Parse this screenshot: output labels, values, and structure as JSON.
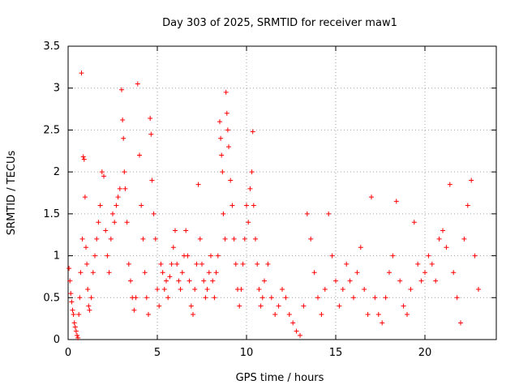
{
  "chart_data": {
    "type": "scatter",
    "title": "Day 303 of 2025, SRMTID for receiver maw1",
    "xlabel": "GPS time / hours",
    "ylabel": "SRMTID / TECUs",
    "xlim": [
      0,
      24
    ],
    "ylim": [
      0,
      3.5
    ],
    "xticks": [
      0,
      5,
      10,
      15,
      20
    ],
    "yticks": [
      0,
      0.5,
      1,
      1.5,
      2,
      2.5,
      3,
      3.5
    ],
    "xtick_labels": [
      "0",
      "5",
      "10",
      "15",
      "20"
    ],
    "ytick_labels": [
      "0",
      "0.5",
      "1",
      "1.5",
      "2",
      "2.5",
      "3",
      "3.5"
    ],
    "grid": true,
    "marker": "+",
    "color": "#ff0000",
    "series": [
      {
        "name": "SRMTID",
        "points": [
          [
            0.05,
            0.85
          ],
          [
            0.1,
            0.7
          ],
          [
            0.15,
            0.55
          ],
          [
            0.2,
            0.45
          ],
          [
            0.25,
            0.35
          ],
          [
            0.3,
            0.3
          ],
          [
            0.35,
            0.2
          ],
          [
            0.4,
            0.15
          ],
          [
            0.45,
            0.1
          ],
          [
            0.5,
            0.05
          ],
          [
            0.55,
            0.02
          ],
          [
            0.6,
            0.3
          ],
          [
            0.65,
            0.5
          ],
          [
            0.7,
            0.8
          ],
          [
            0.75,
            3.18
          ],
          [
            0.8,
            1.2
          ],
          [
            0.85,
            2.18
          ],
          [
            0.9,
            2.15
          ],
          [
            0.95,
            1.7
          ],
          [
            1.0,
            1.1
          ],
          [
            1.05,
            0.9
          ],
          [
            1.1,
            0.6
          ],
          [
            1.15,
            0.4
          ],
          [
            1.2,
            0.35
          ],
          [
            1.3,
            0.5
          ],
          [
            1.4,
            0.8
          ],
          [
            1.5,
            1.0
          ],
          [
            1.6,
            1.2
          ],
          [
            1.7,
            1.4
          ],
          [
            1.8,
            1.6
          ],
          [
            1.9,
            2.0
          ],
          [
            2.0,
            1.95
          ],
          [
            2.1,
            1.3
          ],
          [
            2.2,
            1.0
          ],
          [
            2.3,
            0.8
          ],
          [
            2.4,
            1.2
          ],
          [
            2.5,
            1.5
          ],
          [
            2.6,
            1.4
          ],
          [
            2.7,
            1.6
          ],
          [
            2.8,
            1.7
          ],
          [
            2.9,
            1.8
          ],
          [
            3.0,
            2.98
          ],
          [
            3.05,
            2.62
          ],
          [
            3.1,
            2.4
          ],
          [
            3.15,
            2.0
          ],
          [
            3.2,
            1.8
          ],
          [
            3.3,
            1.4
          ],
          [
            3.4,
            0.9
          ],
          [
            3.5,
            0.7
          ],
          [
            3.6,
            0.5
          ],
          [
            3.7,
            0.35
          ],
          [
            3.8,
            0.5
          ],
          [
            3.9,
            3.05
          ],
          [
            4.0,
            2.2
          ],
          [
            4.1,
            1.6
          ],
          [
            4.2,
            1.2
          ],
          [
            4.3,
            0.8
          ],
          [
            4.4,
            0.5
          ],
          [
            4.5,
            0.3
          ],
          [
            4.6,
            2.64
          ],
          [
            4.65,
            2.45
          ],
          [
            4.7,
            1.9
          ],
          [
            4.8,
            1.5
          ],
          [
            4.9,
            1.2
          ],
          [
            5.0,
            0.6
          ],
          [
            5.1,
            0.4
          ],
          [
            5.2,
            0.9
          ],
          [
            5.3,
            0.8
          ],
          [
            5.4,
            0.6
          ],
          [
            5.5,
            0.7
          ],
          [
            5.6,
            0.5
          ],
          [
            5.7,
            0.75
          ],
          [
            5.8,
            0.9
          ],
          [
            5.9,
            1.1
          ],
          [
            6.0,
            1.3
          ],
          [
            6.1,
            0.9
          ],
          [
            6.2,
            0.7
          ],
          [
            6.3,
            0.6
          ],
          [
            6.4,
            0.8
          ],
          [
            6.5,
            1.0
          ],
          [
            6.6,
            1.3
          ],
          [
            6.7,
            1.0
          ],
          [
            6.8,
            0.7
          ],
          [
            6.9,
            0.4
          ],
          [
            7.0,
            0.3
          ],
          [
            7.1,
            0.6
          ],
          [
            7.2,
            0.9
          ],
          [
            7.3,
            1.85
          ],
          [
            7.4,
            1.2
          ],
          [
            7.5,
            0.9
          ],
          [
            7.6,
            0.7
          ],
          [
            7.7,
            0.5
          ],
          [
            7.8,
            0.6
          ],
          [
            7.9,
            0.8
          ],
          [
            8.0,
            1.0
          ],
          [
            8.1,
            0.7
          ],
          [
            8.2,
            0.5
          ],
          [
            8.3,
            0.8
          ],
          [
            8.4,
            1.0
          ],
          [
            8.5,
            2.6
          ],
          [
            8.55,
            2.4
          ],
          [
            8.6,
            2.2
          ],
          [
            8.65,
            2.0
          ],
          [
            8.7,
            1.5
          ],
          [
            8.8,
            1.2
          ],
          [
            8.85,
            2.95
          ],
          [
            8.9,
            2.7
          ],
          [
            8.95,
            2.5
          ],
          [
            9.0,
            2.3
          ],
          [
            9.1,
            1.9
          ],
          [
            9.2,
            1.6
          ],
          [
            9.3,
            1.2
          ],
          [
            9.4,
            0.9
          ],
          [
            9.5,
            0.6
          ],
          [
            9.6,
            0.4
          ],
          [
            9.7,
            0.6
          ],
          [
            9.8,
            0.9
          ],
          [
            9.9,
            1.2
          ],
          [
            10.0,
            1.6
          ],
          [
            10.1,
            1.4
          ],
          [
            10.2,
            1.8
          ],
          [
            10.3,
            2.0
          ],
          [
            10.35,
            2.48
          ],
          [
            10.4,
            1.6
          ],
          [
            10.5,
            1.2
          ],
          [
            10.6,
            0.9
          ],
          [
            10.7,
            0.6
          ],
          [
            10.8,
            0.4
          ],
          [
            10.9,
            0.5
          ],
          [
            11.0,
            0.7
          ],
          [
            11.2,
            0.9
          ],
          [
            11.4,
            0.5
          ],
          [
            11.6,
            0.3
          ],
          [
            11.8,
            0.4
          ],
          [
            12.0,
            0.6
          ],
          [
            12.2,
            0.5
          ],
          [
            12.4,
            0.3
          ],
          [
            12.6,
            0.2
          ],
          [
            12.8,
            0.1
          ],
          [
            13.0,
            0.05
          ],
          [
            13.2,
            0.4
          ],
          [
            13.4,
            1.5
          ],
          [
            13.6,
            1.2
          ],
          [
            13.8,
            0.8
          ],
          [
            14.0,
            0.5
          ],
          [
            14.2,
            0.3
          ],
          [
            14.4,
            0.6
          ],
          [
            14.6,
            1.5
          ],
          [
            14.8,
            1.0
          ],
          [
            15.0,
            0.7
          ],
          [
            15.2,
            0.4
          ],
          [
            15.4,
            0.6
          ],
          [
            15.6,
            0.9
          ],
          [
            15.8,
            0.7
          ],
          [
            16.0,
            0.5
          ],
          [
            16.2,
            0.8
          ],
          [
            16.4,
            1.1
          ],
          [
            16.6,
            0.6
          ],
          [
            16.8,
            0.3
          ],
          [
            17.0,
            1.7
          ],
          [
            17.2,
            0.5
          ],
          [
            17.4,
            0.3
          ],
          [
            17.6,
            0.2
          ],
          [
            17.8,
            0.5
          ],
          [
            18.0,
            0.8
          ],
          [
            18.2,
            1.0
          ],
          [
            18.4,
            1.65
          ],
          [
            18.6,
            0.7
          ],
          [
            18.8,
            0.4
          ],
          [
            19.0,
            0.3
          ],
          [
            19.2,
            0.6
          ],
          [
            19.4,
            1.4
          ],
          [
            19.6,
            0.9
          ],
          [
            19.8,
            0.7
          ],
          [
            20.0,
            0.8
          ],
          [
            20.2,
            1.0
          ],
          [
            20.4,
            0.9
          ],
          [
            20.6,
            0.7
          ],
          [
            20.8,
            1.2
          ],
          [
            21.0,
            1.3
          ],
          [
            21.2,
            1.1
          ],
          [
            21.4,
            1.85
          ],
          [
            21.6,
            0.8
          ],
          [
            21.8,
            0.5
          ],
          [
            22.0,
            0.2
          ],
          [
            22.2,
            1.2
          ],
          [
            22.4,
            1.6
          ],
          [
            22.6,
            1.9
          ],
          [
            22.8,
            1.0
          ],
          [
            23.0,
            0.6
          ]
        ]
      }
    ]
  }
}
